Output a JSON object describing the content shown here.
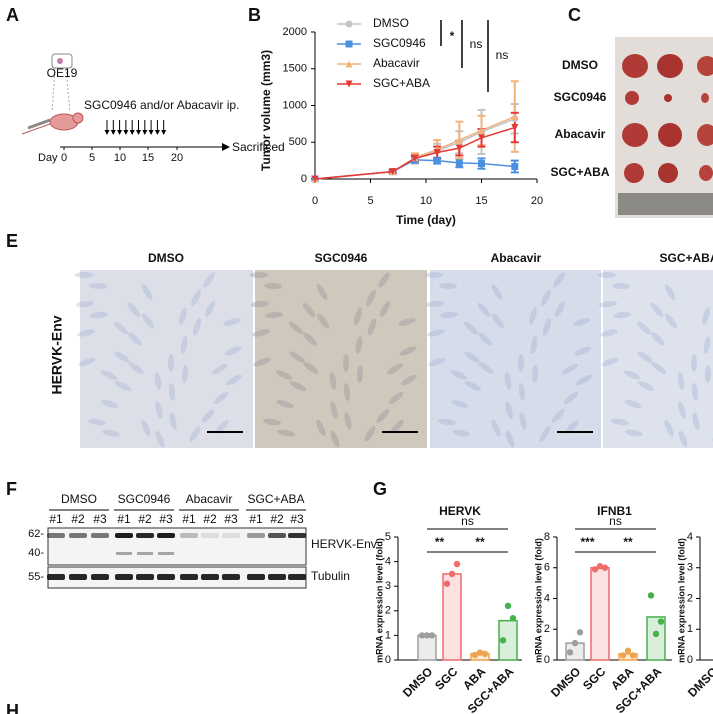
{
  "labels": {
    "a": "A",
    "b": "B",
    "c": "C",
    "e": "E",
    "f": "F",
    "g": "G",
    "h": "H"
  },
  "schematic": {
    "cell_line": "OE19",
    "treatment": "SGC0946 and/or Abacavir ip.",
    "day_label": "Day",
    "days": [
      0,
      5,
      10,
      15,
      20
    ],
    "end": "Sacrificed"
  },
  "tumor_photo": {
    "rows": [
      "DMSO",
      "SGC0946",
      "Abacavir",
      "SGC+ABA"
    ]
  },
  "ihc": {
    "row_label": "HERVK-Env",
    "columns": [
      "DMSO",
      "SGC0946",
      "Abacavir",
      "SGC+ABA"
    ]
  },
  "western": {
    "groups": [
      "DMSO",
      "SGC0946",
      "Abacavir",
      "SGC+ABA"
    ],
    "lanes": [
      "#1",
      "#2",
      "#3",
      "#1",
      "#2",
      "#3",
      "#1",
      "#2",
      "#3",
      "#1",
      "#2",
      "#3"
    ],
    "markers": [
      "62-",
      "40-",
      "55-"
    ],
    "bands": [
      "HERVK-Env",
      "Tubulin"
    ]
  },
  "chart_data": [
    {
      "type": "line",
      "x_label": "Time (day)",
      "y_label": "Tumor volume (mm3)",
      "x": [
        0,
        7,
        9,
        11,
        13,
        15,
        18
      ],
      "xlim": [
        0,
        20
      ],
      "xticks": [
        0,
        5,
        10,
        15,
        20
      ],
      "ylim": [
        0,
        2000
      ],
      "yticks": [
        0,
        500,
        1000,
        1500,
        2000
      ],
      "legend": "upper left",
      "significance": [
        "*",
        "ns",
        "ns"
      ],
      "series": [
        {
          "name": "DMSO",
          "color": "#c4c4c4",
          "marker": "circle",
          "values": [
            0,
            100,
            270,
            380,
            500,
            640,
            820
          ],
          "errors": [
            0,
            20,
            60,
            100,
            150,
            300,
            200
          ]
        },
        {
          "name": "SGC0946",
          "color": "#4a8fe0",
          "marker": "square",
          "values": [
            0,
            100,
            260,
            250,
            220,
            210,
            170
          ],
          "errors": [
            0,
            20,
            40,
            40,
            60,
            70,
            80
          ]
        },
        {
          "name": "Abacavir",
          "color": "#f2b27c",
          "marker": "triangle-up",
          "values": [
            0,
            100,
            290,
            400,
            530,
            660,
            850
          ],
          "errors": [
            0,
            20,
            60,
            130,
            250,
            200,
            480
          ]
        },
        {
          "name": "SGC+ABA",
          "color": "#e53935",
          "marker": "triangle-down",
          "values": [
            0,
            100,
            280,
            360,
            420,
            560,
            700
          ],
          "errors": [
            0,
            20,
            40,
            80,
            100,
            120,
            200
          ]
        }
      ]
    },
    {
      "type": "bar",
      "title": "HERVK",
      "y_label": "mRNA expression level (fold)",
      "categories": [
        "DMSO",
        "SGC",
        "ABA",
        "SGC+ABA"
      ],
      "values": [
        1.0,
        3.5,
        0.25,
        1.6
      ],
      "points": [
        [
          1.0,
          1.0,
          1.0
        ],
        [
          3.1,
          3.5,
          3.9
        ],
        [
          0.2,
          0.3,
          0.25
        ],
        [
          0.8,
          2.2,
          1.7
        ]
      ],
      "colors": [
        "#9e9e9e",
        "#ef6b6b",
        "#f0a24e",
        "#47b04b"
      ],
      "ylim": [
        0,
        5
      ],
      "yticks": [
        0,
        1,
        2,
        3,
        4,
        5
      ],
      "significance": [
        "ns",
        "**",
        "**"
      ]
    },
    {
      "type": "bar",
      "title": "IFNB1",
      "y_label": "mRNA expression level (fold)",
      "categories": [
        "DMSO",
        "SGC",
        "ABA",
        "SGC+ABA"
      ],
      "values": [
        1.1,
        6.0,
        0.4,
        2.8
      ],
      "points": [
        [
          0.5,
          1.1,
          1.8
        ],
        [
          5.9,
          6.1,
          6.0
        ],
        [
          0.3,
          0.6,
          0.3
        ],
        [
          4.2,
          1.7,
          2.5
        ]
      ],
      "colors": [
        "#9e9e9e",
        "#ef6b6b",
        "#f0a24e",
        "#47b04b"
      ],
      "ylim": [
        0,
        8
      ],
      "yticks": [
        0,
        2,
        4,
        6,
        8
      ],
      "significance": [
        "ns",
        "***",
        "**"
      ]
    },
    {
      "type": "bar",
      "y_label": "mRNA expression level (fold)",
      "categories": [
        "DMSO"
      ],
      "values": [
        null
      ],
      "colors": [
        "#9e9e9e"
      ],
      "ylim": [
        0,
        4
      ],
      "yticks": [
        0,
        1,
        2,
        3,
        4
      ]
    }
  ]
}
